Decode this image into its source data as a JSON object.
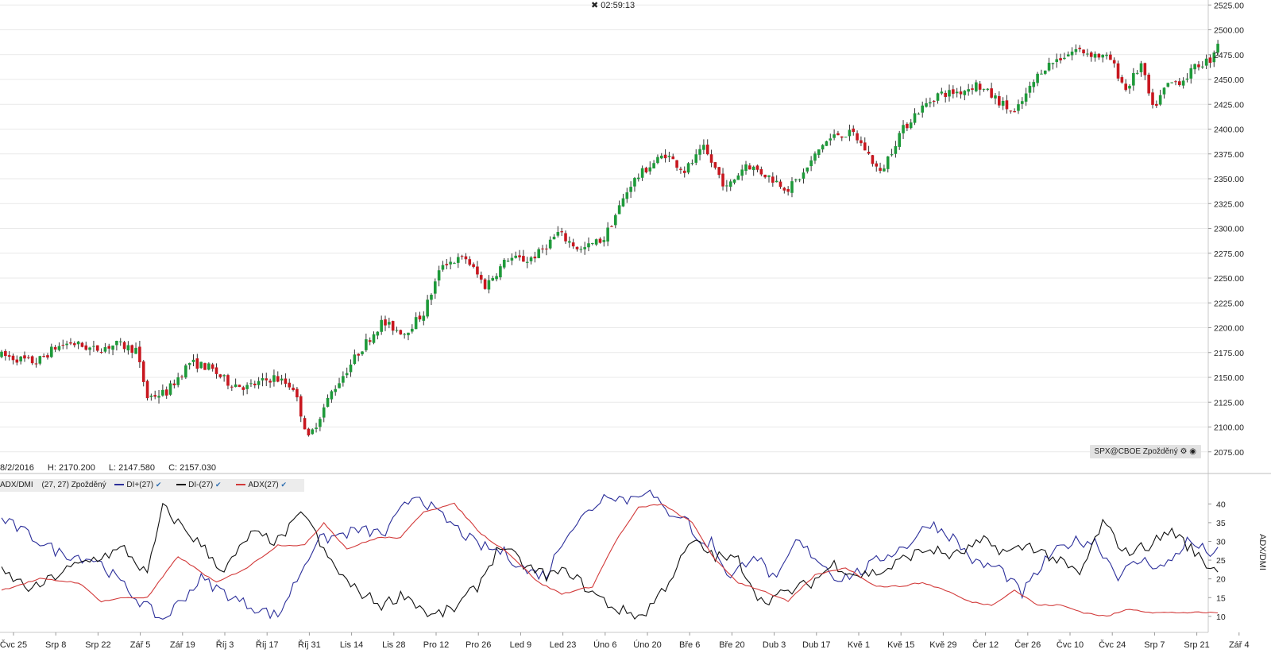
{
  "header": {
    "timer": "02:59:13",
    "timer_icon": "close-icon"
  },
  "ohlc_readout": {
    "date": "8/2/2016",
    "high": "H: 2170.200",
    "low": "L: 2147.580",
    "close": "C: 2157.030"
  },
  "symbol_badge": "SPX@CBOE Zpožděný",
  "indicator_legend": {
    "name": "ADX/DMI",
    "params": "(27, 27) Zpožděný",
    "items": [
      {
        "label": "DI+(27)",
        "color": "#2c2f9a"
      },
      {
        "label": "DI-(27)",
        "color": "#111111"
      },
      {
        "label": "ADX(27)",
        "color": "#d23a3a"
      }
    ]
  },
  "colors": {
    "up": "#1e9a3a",
    "down": "#c8171f",
    "grid": "#e9e9e9"
  },
  "chart_data": [
    {
      "type": "candlestick",
      "x_labels": [
        "Čvc 25",
        "Srp 8",
        "Srp 22",
        "Zář 5",
        "Zář 19",
        "Říj 3",
        "Říj 17",
        "Říj 31",
        "Lis 14",
        "Lis 28",
        "Pro 12",
        "Pro 26",
        "Led 9",
        "Led 23",
        "Úno 6",
        "Úno 20",
        "Bře 6",
        "Bře 20",
        "Dub 3",
        "Dub 17",
        "Kvě 1",
        "Kvě 15",
        "Kvě 29",
        "Čer 12",
        "Čer 26",
        "Čvc 10",
        "Čvc 24",
        "Srp 7",
        "Srp 21",
        "Zář 4"
      ],
      "y_ticks": [
        "2075.00",
        "2100.00",
        "2125.00",
        "2150.00",
        "2175.00",
        "2200.00",
        "2225.00",
        "2250.00",
        "2275.00",
        "2300.00",
        "2325.00",
        "2350.00",
        "2375.00",
        "2400.00",
        "2425.00",
        "2450.00",
        "2475.00",
        "2500.00",
        "2525.00"
      ],
      "ylim": [
        2066,
        2530
      ],
      "anchors": [
        [
          0,
          2172
        ],
        [
          9,
          2165
        ],
        [
          14,
          2180
        ],
        [
          18,
          2185
        ],
        [
          24,
          2178
        ],
        [
          30,
          2183
        ],
        [
          35,
          2178
        ],
        [
          38,
          2130
        ],
        [
          43,
          2135
        ],
        [
          49,
          2165
        ],
        [
          54,
          2160
        ],
        [
          59,
          2145
        ],
        [
          64,
          2140
        ],
        [
          71,
          2150
        ],
        [
          76,
          2140
        ],
        [
          80,
          2088
        ],
        [
          86,
          2135
        ],
        [
          93,
          2175
        ],
        [
          99,
          2205
        ],
        [
          105,
          2195
        ],
        [
          110,
          2215
        ],
        [
          115,
          2265
        ],
        [
          121,
          2270
        ],
        [
          126,
          2242
        ],
        [
          132,
          2270
        ],
        [
          137,
          2268
        ],
        [
          140,
          2275
        ],
        [
          145,
          2295
        ],
        [
          151,
          2278
        ],
        [
          157,
          2290
        ],
        [
          164,
          2345
        ],
        [
          168,
          2360
        ],
        [
          173,
          2375
        ],
        [
          178,
          2358
        ],
        [
          183,
          2380
        ],
        [
          189,
          2340
        ],
        [
          194,
          2365
        ],
        [
          200,
          2352
        ],
        [
          205,
          2340
        ],
        [
          209,
          2355
        ],
        [
          214,
          2385
        ],
        [
          218,
          2395
        ],
        [
          222,
          2395
        ],
        [
          225,
          2380
        ],
        [
          229,
          2355
        ],
        [
          234,
          2395
        ],
        [
          238,
          2415
        ],
        [
          244,
          2435
        ],
        [
          250,
          2438
        ],
        [
          254,
          2445
        ],
        [
          260,
          2428
        ],
        [
          264,
          2415
        ],
        [
          271,
          2460
        ],
        [
          275,
          2470
        ],
        [
          280,
          2480
        ],
        [
          285,
          2475
        ],
        [
          289,
          2470
        ],
        [
          293,
          2440
        ],
        [
          297,
          2465
        ],
        [
          300,
          2420
        ],
        [
          304,
          2445
        ],
        [
          308,
          2450
        ],
        [
          312,
          2465
        ],
        [
          315,
          2470
        ],
        [
          317,
          2488
        ]
      ]
    },
    {
      "type": "line",
      "series": [
        {
          "name": "DI+(27)",
          "anchors": [
            [
              0,
              36
            ],
            [
              15,
              27
            ],
            [
              25,
              25
            ],
            [
              36,
              14
            ],
            [
              42,
              9
            ],
            [
              52,
              20
            ],
            [
              62,
              14
            ],
            [
              72,
              10
            ],
            [
              82,
              30
            ],
            [
              93,
              33
            ],
            [
              100,
              32
            ],
            [
              104,
              38
            ],
            [
              108,
              43
            ],
            [
              113,
              38
            ],
            [
              118,
              34
            ],
            [
              124,
              29
            ],
            [
              131,
              27
            ],
            [
              137,
              22
            ],
            [
              142,
              21
            ],
            [
              147,
              32
            ],
            [
              152,
              37
            ],
            [
              158,
              43
            ],
            [
              163,
              41
            ],
            [
              168,
              44
            ],
            [
              173,
              38
            ],
            [
              178,
              37
            ],
            [
              182,
              29
            ],
            [
              185,
              30
            ],
            [
              190,
              20
            ],
            [
              196,
              27
            ],
            [
              202,
              19
            ],
            [
              207,
              30
            ],
            [
              212,
              26
            ],
            [
              218,
              20
            ],
            [
              224,
              22
            ],
            [
              230,
              26
            ],
            [
              236,
              29
            ],
            [
              242,
              35
            ],
            [
              248,
              31
            ],
            [
              254,
              24
            ],
            [
              260,
              23
            ],
            [
              266,
              16
            ],
            [
              273,
              26
            ],
            [
              279,
              30
            ],
            [
              285,
              30
            ],
            [
              291,
              21
            ],
            [
              297,
              25
            ],
            [
              303,
              23
            ],
            [
              309,
              30
            ],
            [
              315,
              27
            ]
          ]
        },
        {
          "name": "DI-(27)",
          "anchors": [
            [
              0,
              22
            ],
            [
              8,
              17
            ],
            [
              16,
              22
            ],
            [
              23,
              25
            ],
            [
              32,
              28
            ],
            [
              38,
              21
            ],
            [
              42,
              39
            ],
            [
              52,
              29
            ],
            [
              58,
              22
            ],
            [
              65,
              32
            ],
            [
              72,
              30
            ],
            [
              79,
              38
            ],
            [
              84,
              27
            ],
            [
              91,
              18
            ],
            [
              99,
              13
            ],
            [
              105,
              16
            ],
            [
              112,
              10
            ],
            [
              118,
              12
            ],
            [
              124,
              18
            ],
            [
              130,
              29
            ],
            [
              137,
              23
            ],
            [
              142,
              21
            ],
            [
              148,
              22
            ],
            [
              153,
              17
            ],
            [
              160,
              12
            ],
            [
              167,
              10
            ],
            [
              173,
              18
            ],
            [
              180,
              30
            ],
            [
              186,
              26
            ],
            [
              192,
              25
            ],
            [
              198,
              14
            ],
            [
              204,
              16
            ],
            [
              211,
              19
            ],
            [
              217,
              24
            ],
            [
              223,
              21
            ],
            [
              230,
              22
            ],
            [
              236,
              26
            ],
            [
              242,
              28
            ],
            [
              248,
              26
            ],
            [
              256,
              30
            ],
            [
              262,
              27
            ],
            [
              268,
              29
            ],
            [
              275,
              25
            ],
            [
              281,
              21
            ],
            [
              287,
              35
            ],
            [
              293,
              27
            ],
            [
              299,
              29
            ],
            [
              305,
              33
            ],
            [
              315,
              23
            ]
          ]
        },
        {
          "name": "ADX(27)",
          "anchors": [
            [
              0,
              17
            ],
            [
              10,
              20
            ],
            [
              20,
              19
            ],
            [
              26,
              14
            ],
            [
              32,
              15
            ],
            [
              38,
              15
            ],
            [
              46,
              26
            ],
            [
              56,
              19
            ],
            [
              64,
              23
            ],
            [
              72,
              29
            ],
            [
              79,
              29
            ],
            [
              84,
              35
            ],
            [
              90,
              28
            ],
            [
              98,
              31
            ],
            [
              104,
              31
            ],
            [
              110,
              38
            ],
            [
              118,
              40
            ],
            [
              125,
              32
            ],
            [
              132,
              27
            ],
            [
              140,
              19
            ],
            [
              146,
              16
            ],
            [
              154,
              18
            ],
            [
              160,
              30
            ],
            [
              166,
              39
            ],
            [
              172,
              40
            ],
            [
              180,
              35
            ],
            [
              186,
              25
            ],
            [
              192,
              19
            ],
            [
              198,
              17
            ],
            [
              205,
              14
            ],
            [
              212,
              21
            ],
            [
              220,
              23
            ],
            [
              228,
              18
            ],
            [
              234,
              18
            ],
            [
              240,
              19
            ],
            [
              246,
              17
            ],
            [
              252,
              14
            ],
            [
              258,
              13
            ],
            [
              264,
              17
            ],
            [
              270,
              13
            ],
            [
              276,
              13
            ],
            [
              282,
              11
            ],
            [
              288,
              10
            ],
            [
              294,
              12
            ],
            [
              300,
              11
            ],
            [
              310,
              11
            ],
            [
              315,
              11
            ]
          ]
        }
      ],
      "y_ticks": [
        "10",
        "15",
        "20",
        "25",
        "30",
        "35",
        "40"
      ],
      "ylim": [
        7,
        46
      ],
      "ylabel": "ADX/DMI"
    }
  ]
}
